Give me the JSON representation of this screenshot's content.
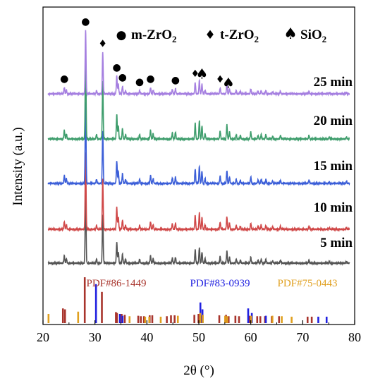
{
  "chart_data": {
    "type": "line",
    "xlabel": "2θ (°)",
    "ylabel": "Intensity (a.u.)",
    "xlim": [
      20,
      80
    ],
    "x_ticks": [
      "20",
      "30",
      "40",
      "50",
      "60",
      "70",
      "80"
    ],
    "phase_legend": [
      {
        "symbol": "●",
        "name": "m-ZrO",
        "sub": "2"
      },
      {
        "symbol": "♦",
        "name": "t-ZrO",
        "sub": "2"
      },
      {
        "symbol": "♠",
        "name": "SiO",
        "sub": "2"
      }
    ],
    "series": [
      {
        "name": "5 min",
        "color": "#555555",
        "peak_scale": 0.85
      },
      {
        "name": "10 min",
        "color": "#d04848",
        "peak_scale": 0.88
      },
      {
        "name": "15 min",
        "color": "#3c5fd8",
        "peak_scale": 0.92
      },
      {
        "name": "20 min",
        "color": "#3e9d6c",
        "peak_scale": 1.0
      },
      {
        "name": "25 min",
        "color": "#a57fe0",
        "peak_scale": 0.72
      }
    ],
    "peaks": [
      {
        "x": 24.1,
        "h": 0.1
      },
      {
        "x": 24.5,
        "h": 0.06
      },
      {
        "x": 28.2,
        "h": 1.0
      },
      {
        "x": 30.3,
        "h": 0.05
      },
      {
        "x": 31.5,
        "h": 0.65
      },
      {
        "x": 34.2,
        "h": 0.28
      },
      {
        "x": 34.5,
        "h": 0.15
      },
      {
        "x": 35.3,
        "h": 0.12
      },
      {
        "x": 35.9,
        "h": 0.05
      },
      {
        "x": 38.6,
        "h": 0.05
      },
      {
        "x": 40.7,
        "h": 0.1
      },
      {
        "x": 41.2,
        "h": 0.06
      },
      {
        "x": 44.9,
        "h": 0.07
      },
      {
        "x": 45.5,
        "h": 0.08
      },
      {
        "x": 49.3,
        "h": 0.18
      },
      {
        "x": 50.1,
        "h": 0.21
      },
      {
        "x": 50.6,
        "h": 0.15
      },
      {
        "x": 51.2,
        "h": 0.06
      },
      {
        "x": 54.1,
        "h": 0.09
      },
      {
        "x": 55.4,
        "h": 0.16
      },
      {
        "x": 55.9,
        "h": 0.08
      },
      {
        "x": 57.2,
        "h": 0.05
      },
      {
        "x": 58.0,
        "h": 0.04
      },
      {
        "x": 60.0,
        "h": 0.08
      },
      {
        "x": 61.4,
        "h": 0.04
      },
      {
        "x": 62.0,
        "h": 0.05
      },
      {
        "x": 62.9,
        "h": 0.05
      },
      {
        "x": 64.2,
        "h": 0.03
      },
      {
        "x": 65.7,
        "h": 0.04
      },
      {
        "x": 71.2,
        "h": 0.04
      },
      {
        "x": 75.1,
        "h": 0.02
      },
      {
        "x": 78.4,
        "h": 0.02
      }
    ],
    "markers_25min": [
      {
        "x": 24.1,
        "symbol": "●"
      },
      {
        "x": 28.2,
        "symbol": "●"
      },
      {
        "x": 31.5,
        "symbol": "♦"
      },
      {
        "x": 34.2,
        "symbol": "●"
      },
      {
        "x": 35.3,
        "symbol": "●"
      },
      {
        "x": 38.6,
        "symbol": "●"
      },
      {
        "x": 40.7,
        "symbol": "●"
      },
      {
        "x": 45.5,
        "symbol": "●"
      },
      {
        "x": 49.3,
        "symbol": "♦"
      },
      {
        "x": 50.6,
        "symbol": "♠"
      },
      {
        "x": 54.1,
        "symbol": "♦"
      },
      {
        "x": 55.7,
        "symbol": "♠"
      }
    ],
    "references": [
      {
        "name": "PDF#86-1449",
        "color": "#a8342c",
        "sticks": [
          {
            "x": 24.0,
            "h": 0.32
          },
          {
            "x": 24.4,
            "h": 0.3
          },
          {
            "x": 28.2,
            "h": 1.0
          },
          {
            "x": 31.5,
            "h": 0.68
          },
          {
            "x": 34.2,
            "h": 0.24
          },
          {
            "x": 34.4,
            "h": 0.22
          },
          {
            "x": 35.3,
            "h": 0.2
          },
          {
            "x": 35.9,
            "h": 0.18
          },
          {
            "x": 38.5,
            "h": 0.16
          },
          {
            "x": 39.0,
            "h": 0.15
          },
          {
            "x": 39.6,
            "h": 0.15
          },
          {
            "x": 40.7,
            "h": 0.17
          },
          {
            "x": 41.2,
            "h": 0.17
          },
          {
            "x": 44.0,
            "h": 0.15
          },
          {
            "x": 44.8,
            "h": 0.17
          },
          {
            "x": 45.5,
            "h": 0.17
          },
          {
            "x": 49.3,
            "h": 0.18
          },
          {
            "x": 50.1,
            "h": 0.2
          },
          {
            "x": 50.6,
            "h": 0.17
          },
          {
            "x": 54.1,
            "h": 0.17
          },
          {
            "x": 55.4,
            "h": 0.18
          },
          {
            "x": 55.9,
            "h": 0.15
          },
          {
            "x": 57.2,
            "h": 0.16
          },
          {
            "x": 57.9,
            "h": 0.15
          },
          {
            "x": 59.9,
            "h": 0.16
          },
          {
            "x": 61.4,
            "h": 0.15
          },
          {
            "x": 62.0,
            "h": 0.15
          },
          {
            "x": 62.9,
            "h": 0.15
          },
          {
            "x": 64.2,
            "h": 0.15
          },
          {
            "x": 65.6,
            "h": 0.15
          },
          {
            "x": 71.1,
            "h": 0.14
          },
          {
            "x": 71.9,
            "h": 0.14
          }
        ]
      },
      {
        "name": "PDF#83-0939",
        "color": "#2020e0",
        "sticks": [
          {
            "x": 30.2,
            "h": 0.85
          },
          {
            "x": 34.8,
            "h": 0.2
          },
          {
            "x": 35.3,
            "h": 0.16
          },
          {
            "x": 50.3,
            "h": 0.45
          },
          {
            "x": 50.7,
            "h": 0.3
          },
          {
            "x": 59.5,
            "h": 0.32
          },
          {
            "x": 60.2,
            "h": 0.22
          },
          {
            "x": 62.9,
            "h": 0.16
          },
          {
            "x": 73.0,
            "h": 0.14
          },
          {
            "x": 74.6,
            "h": 0.14
          }
        ]
      },
      {
        "name": "PDF#75-0443",
        "color": "#e0a020",
        "sticks": [
          {
            "x": 20.9,
            "h": 0.2
          },
          {
            "x": 26.6,
            "h": 0.25
          },
          {
            "x": 36.5,
            "h": 0.15
          },
          {
            "x": 39.5,
            "h": 0.14
          },
          {
            "x": 40.3,
            "h": 0.14
          },
          {
            "x": 42.5,
            "h": 0.14
          },
          {
            "x": 45.8,
            "h": 0.16
          },
          {
            "x": 50.1,
            "h": 0.22
          },
          {
            "x": 50.6,
            "h": 0.18
          },
          {
            "x": 54.9,
            "h": 0.16
          },
          {
            "x": 55.3,
            "h": 0.15
          },
          {
            "x": 59.9,
            "h": 0.16
          },
          {
            "x": 64.0,
            "h": 0.16
          },
          {
            "x": 65.8,
            "h": 0.15
          },
          {
            "x": 67.7,
            "h": 0.14
          }
        ]
      }
    ]
  }
}
